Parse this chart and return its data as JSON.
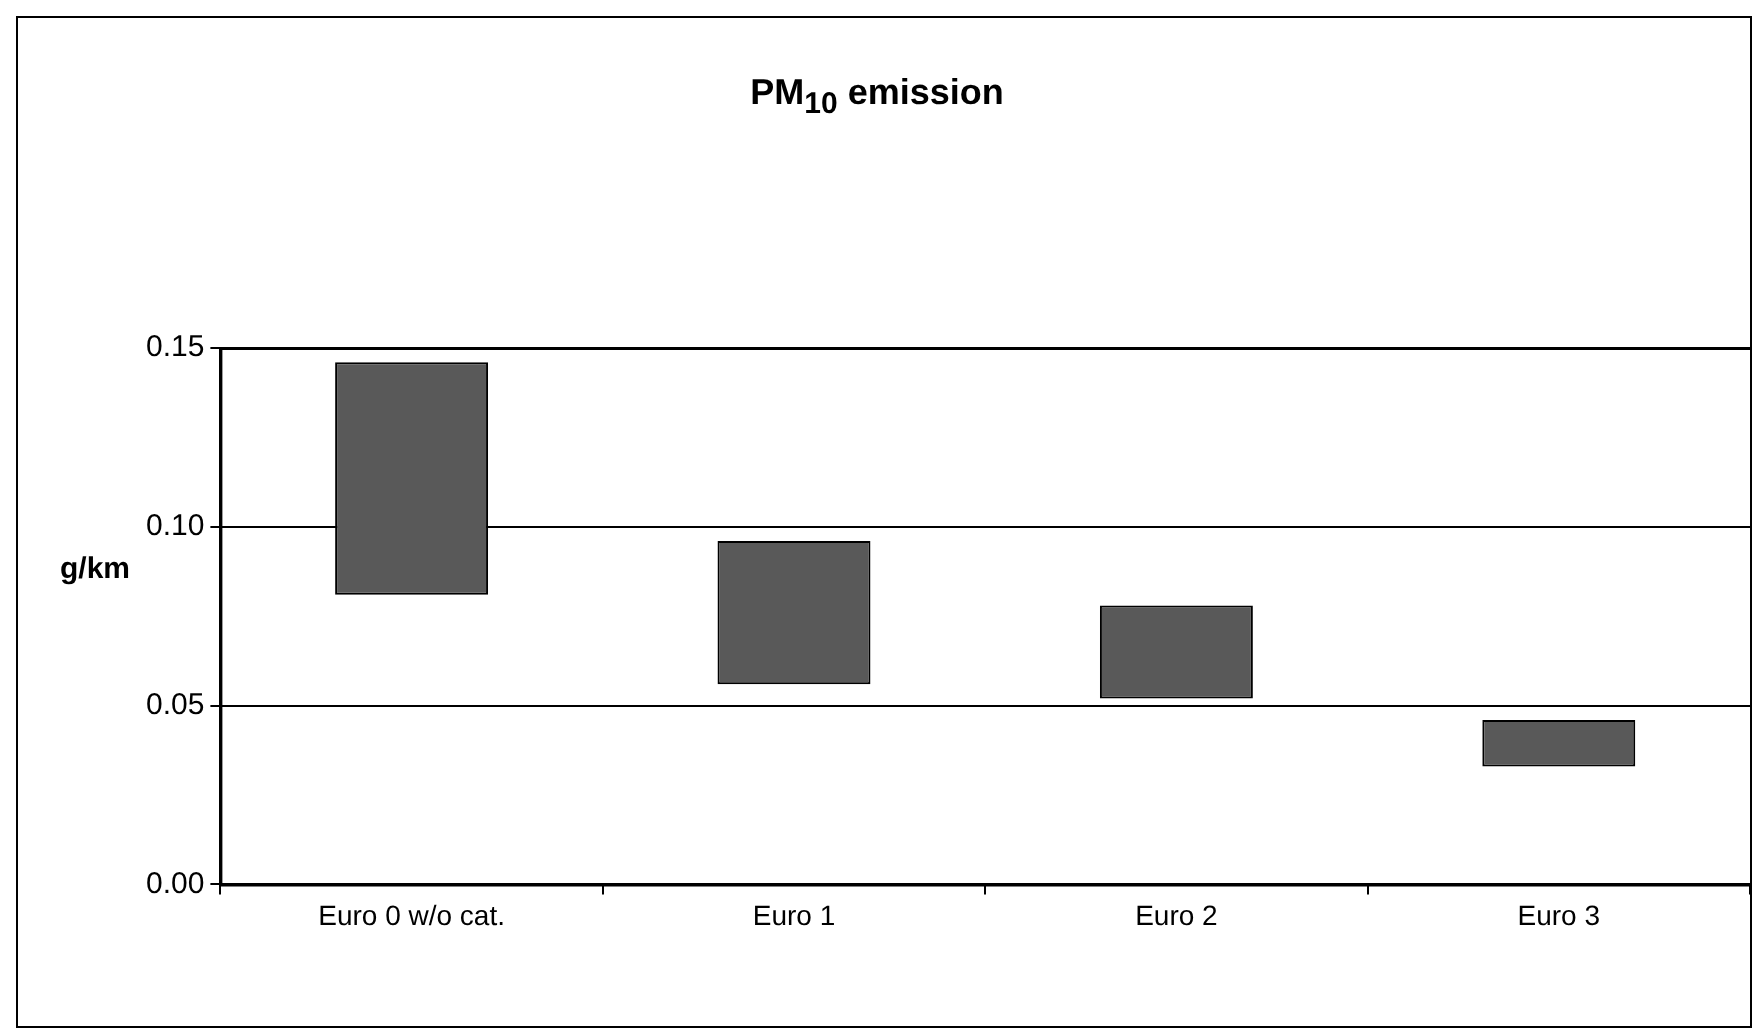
{
  "chart_data": {
    "type": "bar",
    "title": "PM$_{10}$ emission",
    "ylabel": "g/km",
    "categories": [
      "Euro 0 w/o cat.",
      "Euro 1",
      "Euro 2",
      "Euro 3"
    ],
    "base": [
      0.081,
      0.056,
      0.052,
      0.033
    ],
    "values": [
      0.065,
      0.04,
      0.026,
      0.013
    ],
    "color": "#595959",
    "ylim": [
      0,
      0.15
    ],
    "yticks": [
      {
        "value": 0,
        "label": "0.00"
      },
      {
        "value": 0.05,
        "label": "0.05"
      },
      {
        "value": 0.1,
        "label": "0.10"
      },
      {
        "value": 0.15,
        "label": "0.15"
      }
    ],
    "grid": "y",
    "legend": false
  }
}
